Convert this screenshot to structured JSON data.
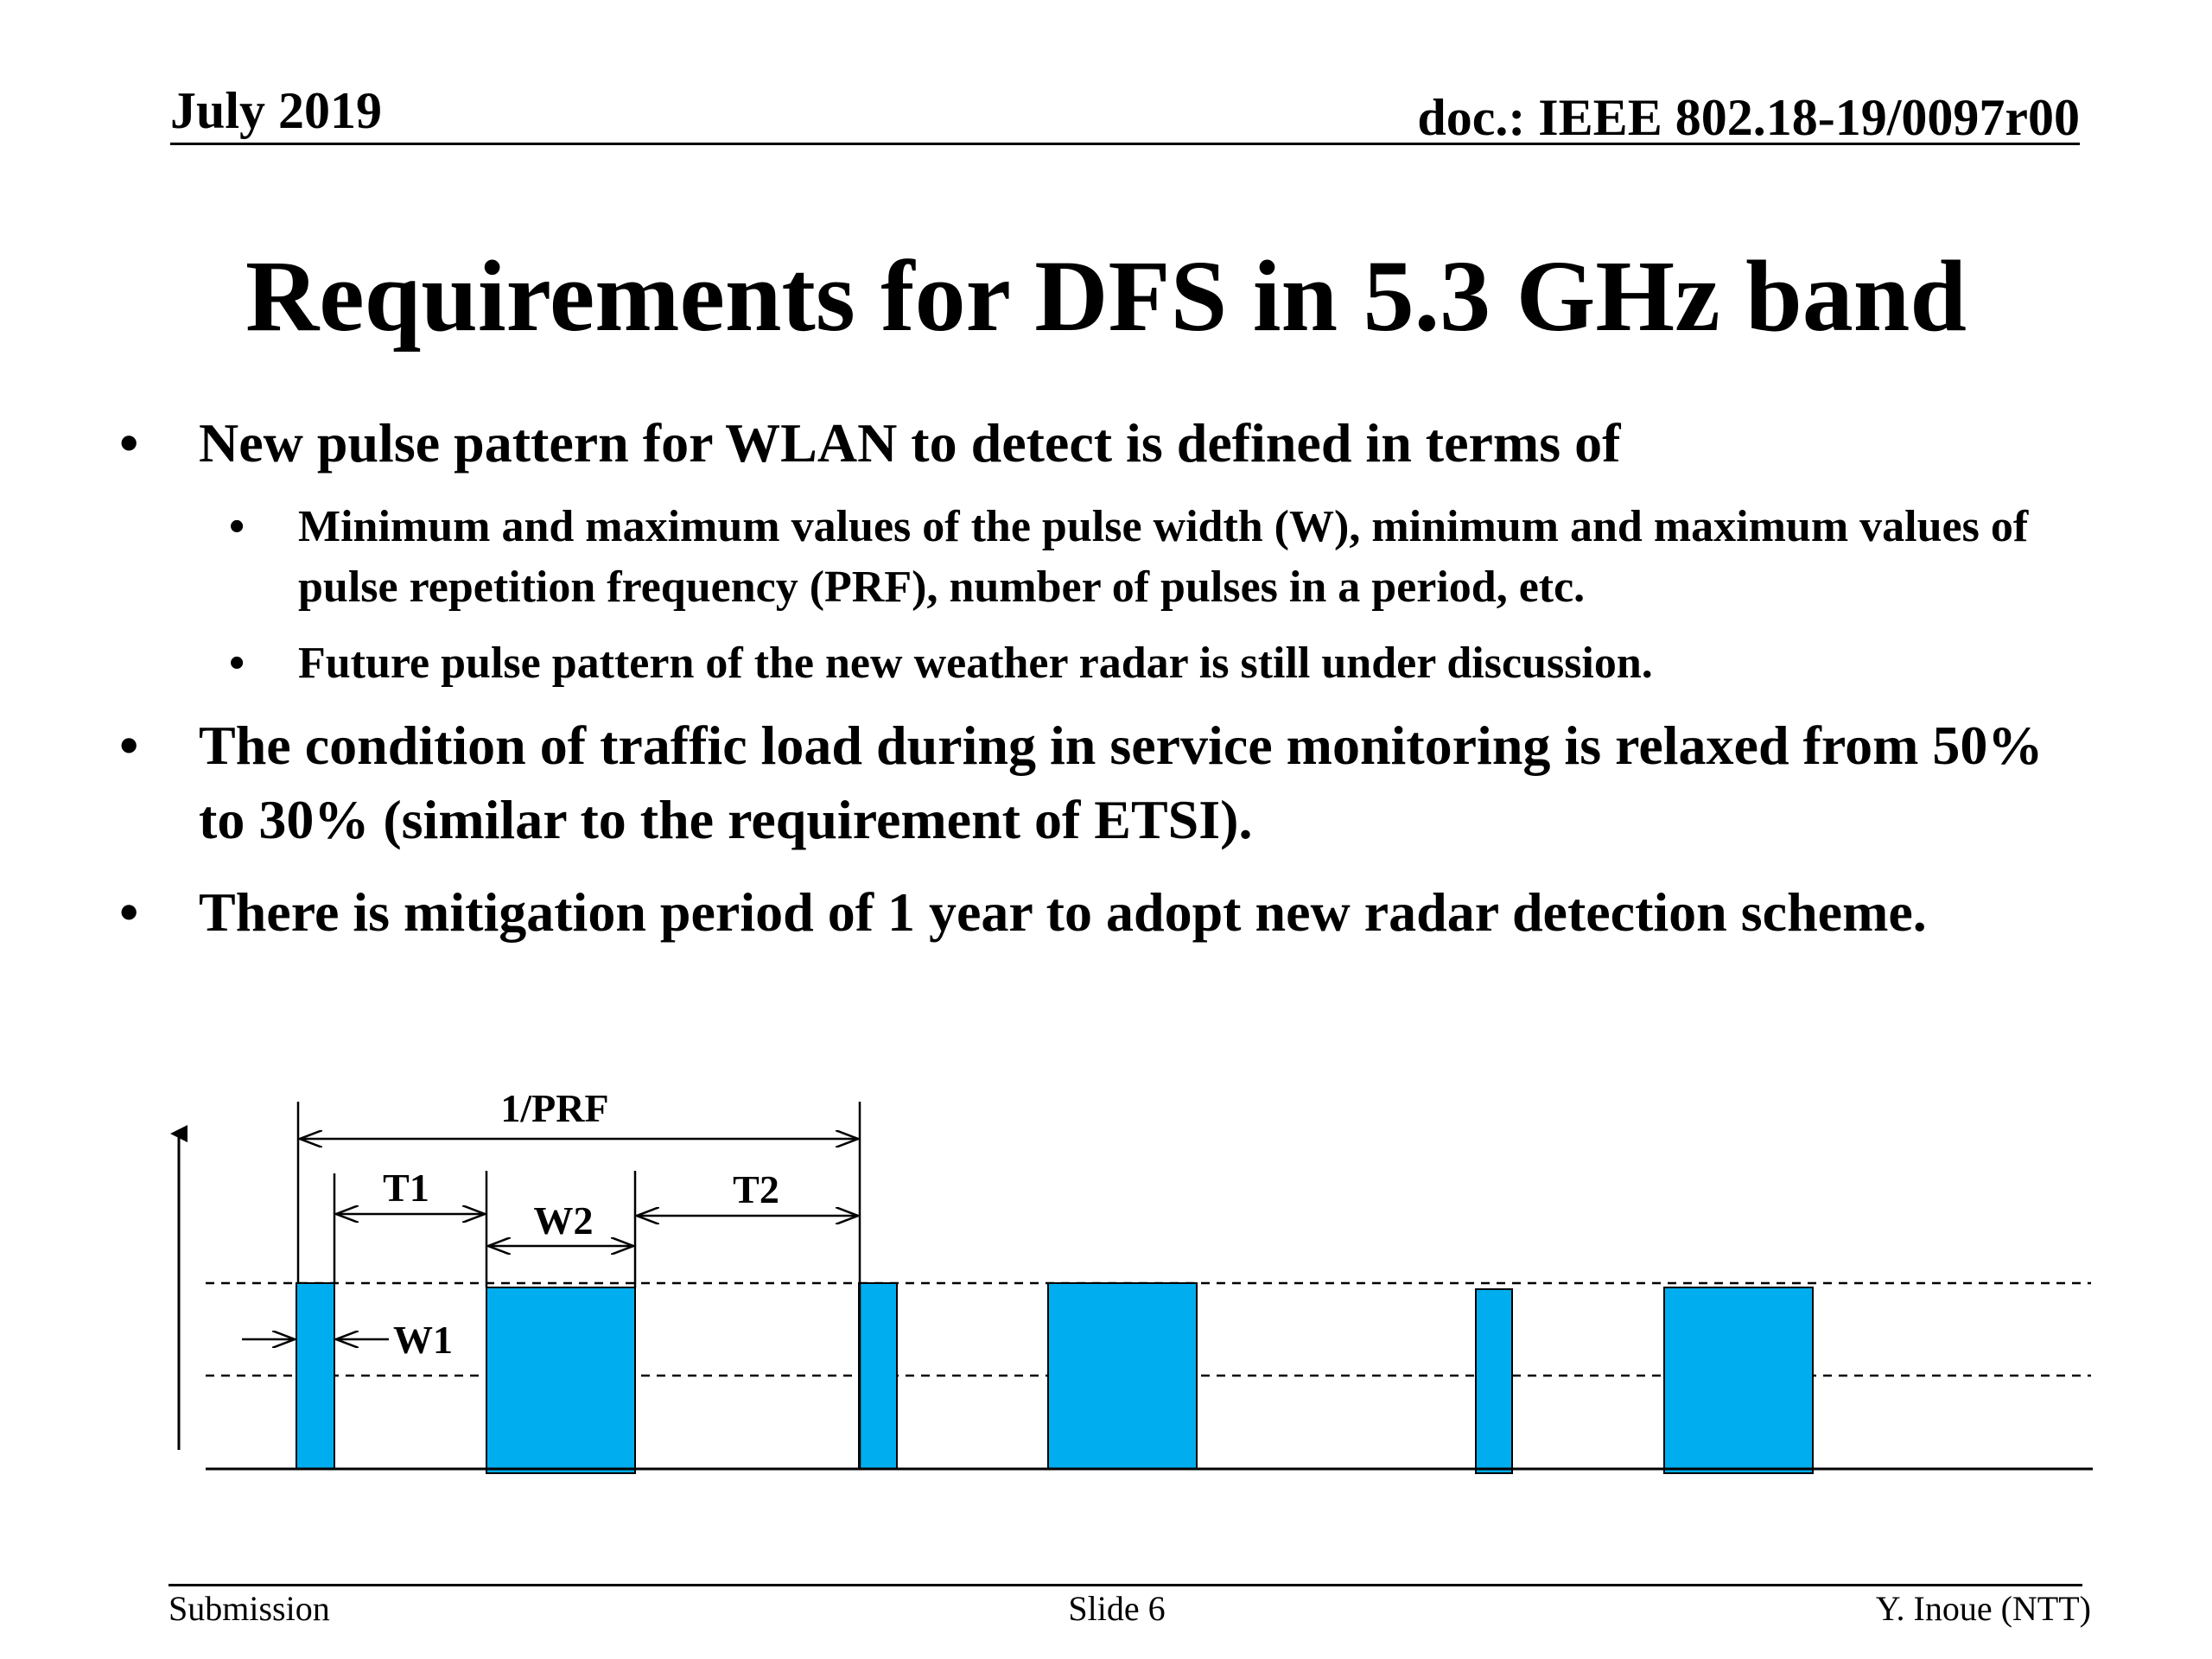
{
  "header": {
    "date": "July 2019",
    "doc": "doc.: IEEE 802.18-19/0097r00"
  },
  "title": "Requirements for DFS in 5.3 GHz band",
  "bullets": [
    {
      "text": "New pulse pattern for WLAN to detect is defined in terms of",
      "sub": [
        "Minimum and maximum values of the pulse width (W), minimum and maximum values of pulse repetition frequency (PRF), number of pulses in a period, etc.",
        "Future pulse pattern of the new weather radar is still under discussion."
      ]
    },
    {
      "text": "The condition of traffic load during in service monitoring is relaxed from 50% to 30% (similar to the requirement of ETSI).",
      "sub": []
    },
    {
      "text": "There is mitigation period of 1 year to adopt new radar detection scheme.",
      "sub": []
    }
  ],
  "bullet_char": "•",
  "diagram": {
    "labels": {
      "prf": "1/PRF",
      "t1": "T1",
      "t2": "T2",
      "w1": "W1",
      "w2": "W2"
    },
    "pulse_color": "#00aeef"
  },
  "footer": {
    "left": "Submission",
    "center": "Slide 6",
    "right": "Y. Inoue (NTT)"
  }
}
